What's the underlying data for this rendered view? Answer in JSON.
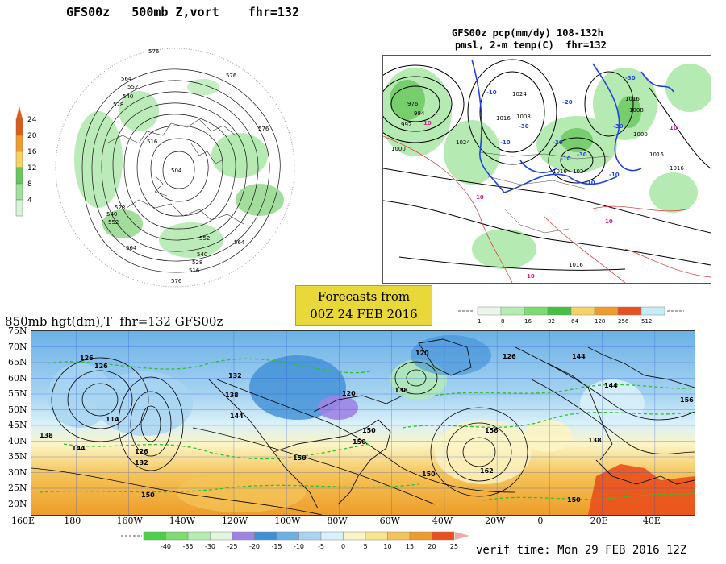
{
  "panel_vort": {
    "title": "GFS00z   500mb Z,vort    fhr=132",
    "colorbar_labels": [
      "24",
      "20",
      "16",
      "12",
      "8",
      "4"
    ],
    "colorbar_colors": [
      "#e05a18",
      "#f39a2c",
      "#f7d262",
      "#66c75a",
      "#9ee39a",
      "#d7f5d6"
    ],
    "height_labels": [
      "576",
      "576",
      "564",
      "552",
      "540",
      "528",
      "516",
      "504",
      "528",
      "540",
      "552",
      "564",
      "576",
      "564",
      "552",
      "540",
      "528",
      "516",
      "576"
    ]
  },
  "panel_precip": {
    "title_line1": "GFS00z pcp(mm/dy) 108-132h",
    "title_line2": "pmsl, 2-m temp(C)  fhr=132",
    "pressure_labels": [
      "976",
      "984",
      "992",
      "1000",
      "1008",
      "1016",
      "1024",
      "1024",
      "1016",
      "1008",
      "1000",
      "1016",
      "1016",
      "1024",
      "1016",
      "1016"
    ],
    "temp_labels": [
      "10",
      "10",
      "10",
      "10",
      "10",
      "-10",
      "-30",
      "-30",
      "-20",
      "-30",
      "-10",
      "-30",
      "-30",
      "-10",
      "-10",
      "-10"
    ]
  },
  "forecast_box": {
    "line1": "Forecasts from",
    "line2": "00Z 24 FEB 2016"
  },
  "precip_colorbar": {
    "labels": [
      "1",
      "8",
      "16",
      "32",
      "64",
      "128",
      "256",
      "512"
    ],
    "colors": [
      "#eaf7e8",
      "#b5ecb0",
      "#7ddc6f",
      "#45c043",
      "#f7d262",
      "#f39a2c",
      "#e9501c",
      "#c5ecf7"
    ]
  },
  "panel_850": {
    "title": "850mb hgt(dm),T  fhr=132 GFS00z",
    "lat_labels": [
      "75N",
      "70N",
      "65N",
      "60N",
      "55N",
      "50N",
      "45N",
      "40N",
      "35N",
      "30N",
      "25N",
      "20N"
    ],
    "lon_labels": [
      "160E",
      "180",
      "160W",
      "140W",
      "120W",
      "100W",
      "80W",
      "60W",
      "40W",
      "20W",
      "0",
      "20E",
      "40E"
    ],
    "height_labels": [
      "126",
      "126",
      "132",
      "138",
      "120",
      "120",
      "126",
      "144",
      "114",
      "126",
      "132",
      "138",
      "150",
      "150",
      "138",
      "144",
      "150",
      "156",
      "162",
      "150",
      "156",
      "144",
      "138",
      "150",
      "144",
      "150"
    ]
  },
  "temp_colorbar": {
    "labels": [
      "-40",
      "-35",
      "-30",
      "-25",
      "-20",
      "-15",
      "-10",
      "-5",
      "0",
      "5",
      "10",
      "15",
      "20",
      "25"
    ],
    "colors": [
      "#4ad04a",
      "#7edb6e",
      "#b5ecb0",
      "#e1f7dc",
      "#9d84e6",
      "#3f8fd6",
      "#6bb1e6",
      "#a8d4f1",
      "#d8f0fa",
      "#fbf4c4",
      "#f7e48e",
      "#f5c458",
      "#ee9d2a",
      "#e9501c"
    ]
  },
  "verif_time": "verif time: Mon 29 FEB 2016 12Z"
}
